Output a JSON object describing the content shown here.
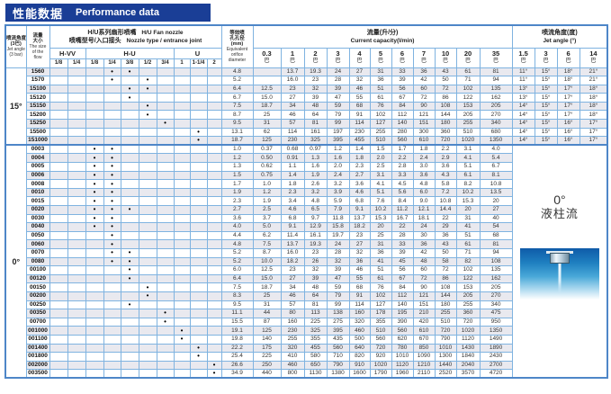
{
  "title": {
    "zh": "性能数据",
    "en": "Performance data"
  },
  "colors": {
    "banner": "#1a3e96",
    "grid": "#7fb3e0",
    "frame": "#4e86c8",
    "stripe": "#e9e9ef"
  },
  "table": {
    "headers": {
      "jet_angle_3bar": {
        "zh1": "喷流角度",
        "zh2": "(3巴)",
        "en1": "Jet angle",
        "en2": "(3 bar)"
      },
      "flow_size": {
        "zh1": "流量",
        "zh2": "大小",
        "en1": "The size",
        "en2": "of the",
        "en3": "flow"
      },
      "nozzle": {
        "zh1": "H/U系列扇形喷嘴",
        "zh2": "喷嘴型号/入口接头",
        "en1": "H/U  Fan nozzle",
        "en2": "Nozzle type / entrance joint"
      },
      "nozzle_groups": [
        {
          "label": "H-VV",
          "cols": [
            "1/8",
            "1/4"
          ]
        },
        {
          "label": "H-U",
          "cols": [
            "1/8",
            "1/4",
            "3/8",
            "1/2",
            "3/4"
          ]
        },
        {
          "label": "U",
          "cols": [
            "1",
            "1-1/4",
            "2"
          ]
        }
      ],
      "orifice": {
        "zh1": "等效喷",
        "zh2": "孔孔径",
        "zh3": "(mm)",
        "en1": "Equivalent",
        "en2": "orifice",
        "en3": "diameter"
      },
      "capacity": {
        "zh": "流量(升/分)",
        "en": "Current capacity(l/min)"
      },
      "pressures": [
        "0.3",
        "1",
        "2",
        "3",
        "4",
        "5",
        "6",
        "7",
        "10",
        "20",
        "35"
      ],
      "pressure_unit": "巴",
      "jet_angle": {
        "zh": "喷流角度(度)",
        "en": "Jet angle (°)"
      },
      "jet_pressures": [
        "1.5",
        "3",
        "6",
        "14"
      ]
    },
    "dot_symbol": "•",
    "groups": [
      {
        "angle": "15°",
        "rows": [
          {
            "code": "1560",
            "dots": [
              3,
              4
            ],
            "orifice": "4.8",
            "flows": [
              "",
              "13.7",
              "19.3",
              "24",
              "27",
              "31",
              "33",
              "36",
              "43",
              "61",
              "81"
            ],
            "angles": [
              "11°",
              "15°",
              "18°",
              "21°"
            ]
          },
          {
            "code": "1570",
            "dots": [
              3,
              5
            ],
            "orifice": "5.2",
            "flows": [
              "",
              "16.0",
              "23",
              "28",
              "32",
              "36",
              "39",
              "42",
              "50",
              "71",
              "94"
            ],
            "angles": [
              "11°",
              "15°",
              "18°",
              "21°"
            ]
          },
          {
            "code": "15100",
            "dots": [
              4,
              5
            ],
            "orifice": "6.4",
            "flows": [
              "12.5",
              "23",
              "32",
              "39",
              "46",
              "51",
              "56",
              "60",
              "72",
              "102",
              "135"
            ],
            "angles": [
              "13°",
              "15°",
              "17°",
              "18°"
            ]
          },
          {
            "code": "15120",
            "dots": [
              4
            ],
            "orifice": "6.7",
            "flows": [
              "15.0",
              "27",
              "39",
              "47",
              "55",
              "61",
              "67",
              "72",
              "86",
              "122",
              "162"
            ],
            "angles": [
              "13°",
              "15°",
              "17°",
              "18°"
            ]
          },
          {
            "code": "15150",
            "dots": [
              5
            ],
            "orifice": "7.5",
            "flows": [
              "18.7",
              "34",
              "48",
              "59",
              "68",
              "76",
              "84",
              "90",
              "108",
              "153",
              "205"
            ],
            "angles": [
              "14°",
              "15°",
              "17°",
              "18°"
            ]
          },
          {
            "code": "15200",
            "dots": [
              5
            ],
            "orifice": "8.7",
            "flows": [
              "25",
              "46",
              "64",
              "79",
              "91",
              "102",
              "112",
              "121",
              "144",
              "205",
              "270"
            ],
            "angles": [
              "14°",
              "15°",
              "17°",
              "18°"
            ]
          },
          {
            "code": "15250",
            "dots": [
              6
            ],
            "orifice": "9.5",
            "flows": [
              "31",
              "57",
              "81",
              "99",
              "114",
              "127",
              "140",
              "151",
              "180",
              "255",
              "340"
            ],
            "angles": [
              "14°",
              "15°",
              "16°",
              "17°"
            ]
          },
          {
            "code": "15500",
            "dots": [
              8
            ],
            "orifice": "13.1",
            "flows": [
              "62",
              "114",
              "161",
              "197",
              "230",
              "255",
              "280",
              "300",
              "360",
              "510",
              "680"
            ],
            "angles": [
              "14°",
              "15°",
              "16°",
              "17°"
            ]
          },
          {
            "code": "151000",
            "dots": [
              8
            ],
            "orifice": "18.7",
            "flows": [
              "125",
              "230",
              "325",
              "395",
              "455",
              "510",
              "560",
              "610",
              "720",
              "1020",
              "1350"
            ],
            "angles": [
              "14°",
              "15°",
              "16°",
              "17°"
            ]
          }
        ]
      },
      {
        "angle": "0°",
        "note": {
          "angle": "0°",
          "label": "液柱流"
        },
        "illustration": "liquid-column-jet-nozzle",
        "rows": [
          {
            "code": "0003",
            "dots": [
              2,
              3
            ],
            "orifice": "1.0",
            "flows": [
              "0.37",
              "0.68",
              "0.97",
              "1.2",
              "1.4",
              "1.5",
              "1.7",
              "1.8",
              "2.2",
              "3.1",
              "4.0"
            ]
          },
          {
            "code": "0004",
            "dots": [
              2,
              3
            ],
            "orifice": "1.2",
            "flows": [
              "0.50",
              "0.91",
              "1.3",
              "1.6",
              "1.8",
              "2.0",
              "2.2",
              "2.4",
              "2.9",
              "4.1",
              "5.4"
            ]
          },
          {
            "code": "0005",
            "dots": [
              2,
              3
            ],
            "orifice": "1.3",
            "flows": [
              "0.62",
              "1.1",
              "1.6",
              "2.0",
              "2.3",
              "2.5",
              "2.8",
              "3.0",
              "3.6",
              "5.1",
              "6.7"
            ]
          },
          {
            "code": "0006",
            "dots": [
              2,
              3
            ],
            "orifice": "1.5",
            "flows": [
              "0.75",
              "1.4",
              "1.9",
              "2.4",
              "2.7",
              "3.1",
              "3.3",
              "3.6",
              "4.3",
              "6.1",
              "8.1"
            ]
          },
          {
            "code": "0008",
            "dots": [
              2,
              3
            ],
            "orifice": "1.7",
            "flows": [
              "1.0",
              "1.8",
              "2.6",
              "3.2",
              "3.6",
              "4.1",
              "4.5",
              "4.8",
              "5.8",
              "8.2",
              "10.8"
            ]
          },
          {
            "code": "0010",
            "dots": [
              2,
              3
            ],
            "orifice": "1.9",
            "flows": [
              "1.2",
              "2.3",
              "3.2",
              "3.9",
              "4.6",
              "5.1",
              "5.6",
              "6.0",
              "7.2",
              "10.2",
              "13.5"
            ]
          },
          {
            "code": "0015",
            "dots": [
              2,
              3
            ],
            "orifice": "2.3",
            "flows": [
              "1.9",
              "3.4",
              "4.8",
              "5.9",
              "6.8",
              "7.6",
              "8.4",
              "9.0",
              "10.8",
              "15.3",
              "20"
            ]
          },
          {
            "code": "0020",
            "dots": [
              2,
              3,
              4
            ],
            "orifice": "2.7",
            "flows": [
              "2.5",
              "4.6",
              "6.5",
              "7.9",
              "9.1",
              "10.2",
              "11.2",
              "12.1",
              "14.4",
              "20",
              "27"
            ]
          },
          {
            "code": "0030",
            "dots": [
              2,
              3
            ],
            "orifice": "3.6",
            "flows": [
              "3.7",
              "6.8",
              "9.7",
              "11.8",
              "13.7",
              "15.3",
              "16.7",
              "18.1",
              "22",
              "31",
              "40"
            ]
          },
          {
            "code": "0040",
            "dots": [
              2,
              3
            ],
            "orifice": "4.0",
            "flows": [
              "5.0",
              "9.1",
              "12.9",
              "15.8",
              "18.2",
              "20",
              "22",
              "24",
              "29",
              "41",
              "54"
            ]
          },
          {
            "code": "0050",
            "dots": [
              3
            ],
            "orifice": "4.4",
            "flows": [
              "6.2",
              "11.4",
              "16.1",
              "19.7",
              "23",
              "25",
              "28",
              "30",
              "36",
              "51",
              "68"
            ]
          },
          {
            "code": "0060",
            "dots": [
              3
            ],
            "orifice": "4.8",
            "flows": [
              "7.5",
              "13.7",
              "19.3",
              "24",
              "27",
              "31",
              "33",
              "36",
              "43",
              "61",
              "81"
            ]
          },
          {
            "code": "0070",
            "dots": [
              3,
              4
            ],
            "orifice": "5.2",
            "flows": [
              "8.7",
              "16.0",
              "23",
              "28",
              "32",
              "36",
              "39",
              "42",
              "50",
              "71",
              "94"
            ]
          },
          {
            "code": "0080",
            "dots": [
              3,
              4
            ],
            "orifice": "5.2",
            "flows": [
              "10.0",
              "18.2",
              "26",
              "32",
              "36",
              "41",
              "45",
              "48",
              "58",
              "82",
              "108"
            ]
          },
          {
            "code": "00100",
            "dots": [
              4
            ],
            "orifice": "6.0",
            "flows": [
              "12.5",
              "23",
              "32",
              "39",
              "46",
              "51",
              "56",
              "60",
              "72",
              "102",
              "135"
            ]
          },
          {
            "code": "00120",
            "dots": [
              4
            ],
            "orifice": "6.4",
            "flows": [
              "15.0",
              "27",
              "39",
              "47",
              "55",
              "61",
              "67",
              "72",
              "86",
              "122",
              "162"
            ]
          },
          {
            "code": "00150",
            "dots": [
              5
            ],
            "orifice": "7.5",
            "flows": [
              "18.7",
              "34",
              "48",
              "59",
              "68",
              "76",
              "84",
              "90",
              "108",
              "153",
              "205"
            ]
          },
          {
            "code": "00200",
            "dots": [
              5
            ],
            "orifice": "8.3",
            "flows": [
              "25",
              "46",
              "64",
              "79",
              "91",
              "102",
              "112",
              "121",
              "144",
              "205",
              "270"
            ]
          },
          {
            "code": "00250",
            "dots": [
              4
            ],
            "orifice": "9.5",
            "flows": [
              "31",
              "57",
              "81",
              "99",
              "114",
              "127",
              "140",
              "151",
              "180",
              "255",
              "340"
            ]
          },
          {
            "code": "00350",
            "dots": [
              6
            ],
            "orifice": "11.1",
            "flows": [
              "44",
              "80",
              "113",
              "138",
              "160",
              "178",
              "195",
              "210",
              "255",
              "360",
              "475"
            ]
          },
          {
            "code": "00700",
            "dots": [
              6
            ],
            "orifice": "15.5",
            "flows": [
              "87",
              "160",
              "225",
              "275",
              "320",
              "355",
              "390",
              "420",
              "510",
              "720",
              "950"
            ]
          },
          {
            "code": "001000",
            "dots": [
              7
            ],
            "orifice": "19.1",
            "flows": [
              "125",
              "230",
              "325",
              "395",
              "460",
              "510",
              "560",
              "610",
              "720",
              "1020",
              "1350"
            ]
          },
          {
            "code": "001100",
            "dots": [
              7
            ],
            "orifice": "19.8",
            "flows": [
              "140",
              "255",
              "355",
              "435",
              "500",
              "560",
              "620",
              "670",
              "790",
              "1120",
              "1490"
            ]
          },
          {
            "code": "001400",
            "dots": [
              8
            ],
            "orifice": "22.2",
            "flows": [
              "175",
              "320",
              "455",
              "560",
              "640",
              "720",
              "780",
              "850",
              "1010",
              "1430",
              "1890"
            ]
          },
          {
            "code": "001800",
            "dots": [
              8
            ],
            "orifice": "25.4",
            "flows": [
              "225",
              "410",
              "580",
              "710",
              "820",
              "920",
              "1010",
              "1090",
              "1300",
              "1840",
              "2430"
            ]
          },
          {
            "code": "002000",
            "dots": [
              9
            ],
            "orifice": "26.6",
            "flows": [
              "250",
              "460",
              "650",
              "790",
              "910",
              "1020",
              "1120",
              "1210",
              "1440",
              "2040",
              "2700"
            ]
          },
          {
            "code": "003500",
            "dots": [
              9
            ],
            "orifice": "34.9",
            "flows": [
              "440",
              "800",
              "1130",
              "1380",
              "1600",
              "1790",
              "1960",
              "2110",
              "2520",
              "3570",
              "4720"
            ]
          }
        ]
      }
    ]
  }
}
